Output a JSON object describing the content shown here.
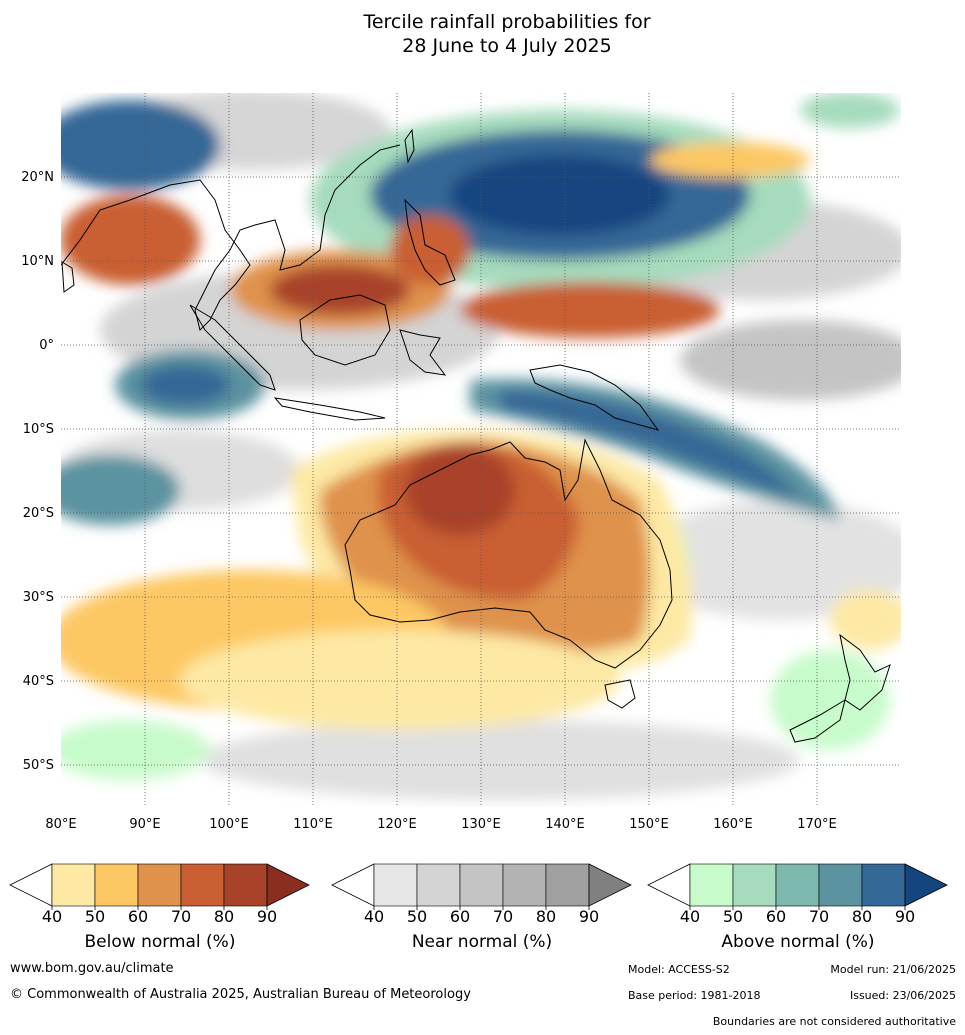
{
  "title": {
    "line1": "Tercile rainfall probabilities for",
    "line2": "28 June to 4 July 2025"
  },
  "map": {
    "lon_labels": [
      "80°E",
      "90°E",
      "100°E",
      "110°E",
      "120°E",
      "130°E",
      "140°E",
      "150°E",
      "160°E",
      "170°E"
    ],
    "lat_labels": [
      "20°N",
      "10°N",
      "0°",
      "10°S",
      "20°S",
      "30°S",
      "40°S",
      "50°S"
    ],
    "lon_range": [
      80,
      180
    ],
    "lat_range": [
      -55,
      30
    ],
    "gridlines": true
  },
  "legends": [
    {
      "name": "Below normal (%)",
      "ticks": [
        "40",
        "50",
        "60",
        "70",
        "80",
        "90"
      ],
      "colors": [
        "#ffffff",
        "#fde9a4",
        "#fdc864",
        "#df924b",
        "#c95f33",
        "#a8432a",
        "#8a2f1f"
      ]
    },
    {
      "name": "Near normal (%)",
      "ticks": [
        "40",
        "50",
        "60",
        "70",
        "80",
        "90"
      ],
      "colors": [
        "#ffffff",
        "#e6e6e6",
        "#d4d4d4",
        "#c4c4c4",
        "#b3b3b3",
        "#a0a0a0",
        "#808080"
      ]
    },
    {
      "name": "Above normal (%)",
      "ticks": [
        "40",
        "50",
        "60",
        "70",
        "80",
        "90"
      ],
      "colors": [
        "#ffffff",
        "#c8fbcb",
        "#a6dbbd",
        "#7cb8ad",
        "#5b93a0",
        "#346896",
        "#14457f"
      ]
    }
  ],
  "footer": {
    "website": "www.bom.gov.au/climate",
    "copyright": "© Commonwealth of Australia 2025, Australian Bureau of Meteorology",
    "model": "Model: ACCESS-S2",
    "model_run": "Model run: 21/06/2025",
    "base_period": "Base period: 1981-2018",
    "issued": "Issued: 23/06/2025",
    "boundaries_note": "Boundaries are not considered authoritative"
  }
}
